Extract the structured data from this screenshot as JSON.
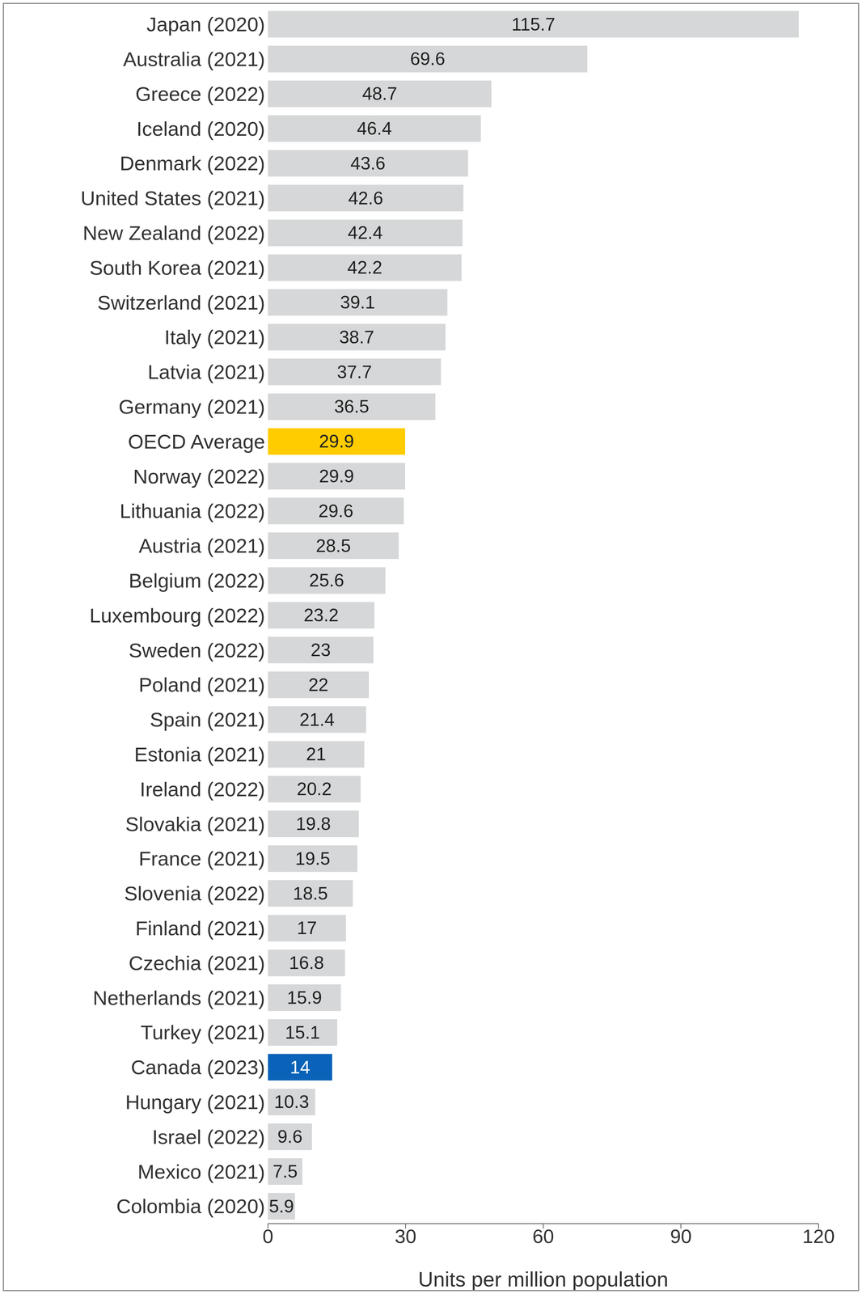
{
  "chart_data": {
    "type": "bar",
    "orientation": "horizontal",
    "categories": [
      "Japan (2020)",
      "Australia (2021)",
      "Greece (2022)",
      "Iceland (2020)",
      "Denmark (2022)",
      "United States (2021)",
      "New Zealand (2022)",
      "South Korea (2021)",
      "Switzerland (2021)",
      "Italy (2021)",
      "Latvia (2021)",
      "Germany (2021)",
      "OECD Average",
      "Norway (2022)",
      "Lithuania (2022)",
      "Austria (2021)",
      "Belgium (2022)",
      "Luxembourg (2022)",
      "Sweden (2022)",
      "Poland (2021)",
      "Spain (2021)",
      "Estonia (2021)",
      "Ireland (2022)",
      "Slovakia (2021)",
      "France (2021)",
      "Slovenia (2022)",
      "Finland (2021)",
      "Czechia (2021)",
      "Netherlands (2021)",
      "Turkey (2021)",
      "Canada (2023)",
      "Hungary (2021)",
      "Israel (2022)",
      "Mexico (2021)",
      "Colombia (2020)"
    ],
    "values": [
      115.7,
      69.6,
      48.7,
      46.4,
      43.6,
      42.6,
      42.4,
      42.2,
      39.1,
      38.7,
      37.7,
      36.5,
      29.9,
      29.9,
      29.6,
      28.5,
      25.6,
      23.2,
      23,
      22,
      21.4,
      21,
      20.2,
      19.8,
      19.5,
      18.5,
      17,
      16.8,
      15.9,
      15.1,
      14,
      10.3,
      9.6,
      7.5,
      5.9
    ],
    "colors": [
      "#d5d7d8",
      "#d5d7d8",
      "#d5d7d8",
      "#d5d7d8",
      "#d5d7d8",
      "#d5d7d8",
      "#d5d7d8",
      "#d5d7d8",
      "#d5d7d8",
      "#d5d7d8",
      "#d5d7d8",
      "#d5d7d8",
      "#ffcc00",
      "#d5d7d8",
      "#d5d7d8",
      "#d5d7d8",
      "#d5d7d8",
      "#d5d7d8",
      "#d5d7d8",
      "#d5d7d8",
      "#d5d7d8",
      "#d5d7d8",
      "#d5d7d8",
      "#d5d7d8",
      "#d5d7d8",
      "#d5d7d8",
      "#d5d7d8",
      "#d5d7d8",
      "#d5d7d8",
      "#d5d7d8",
      "#0a63b8",
      "#d5d7d8",
      "#d5d7d8",
      "#d5d7d8",
      "#d5d7d8"
    ],
    "x_label": "Units per million population",
    "xlim": [
      0,
      120
    ],
    "xticks": [
      0,
      30,
      60,
      90,
      120
    ],
    "data_labels": true,
    "grid": false
  }
}
